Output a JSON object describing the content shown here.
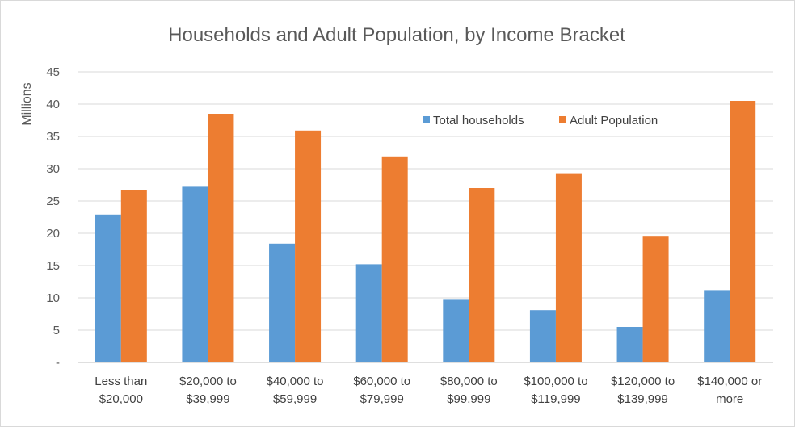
{
  "chart_data": {
    "type": "bar",
    "title": "Households and Adult Population, by Income Bracket",
    "xlabel": "",
    "ylabel": "Millions",
    "ylim": [
      0,
      45
    ],
    "yticks": [
      0,
      5,
      10,
      15,
      20,
      25,
      30,
      35,
      40,
      45
    ],
    "ytick_labels": [
      "-",
      "5",
      "10",
      "15",
      "20",
      "25",
      "30",
      "35",
      "40",
      "45"
    ],
    "grid": true,
    "legend_position": "top-right",
    "categories": [
      [
        "Less than",
        "$20,000"
      ],
      [
        "$20,000 to",
        "$39,999"
      ],
      [
        "$40,000 to",
        "$59,999"
      ],
      [
        "$60,000 to",
        "$79,999"
      ],
      [
        "$80,000 to",
        "$99,999"
      ],
      [
        "$100,000 to",
        "$119,999"
      ],
      [
        "$120,000 to",
        "$139,999"
      ],
      [
        "$140,000 or",
        "more"
      ]
    ],
    "series": [
      {
        "name": "Total households",
        "color": "#5b9bd5",
        "values": [
          22.9,
          27.2,
          18.4,
          15.2,
          9.7,
          8.1,
          5.5,
          11.2
        ]
      },
      {
        "name": "Adult Population",
        "color": "#ed7d31",
        "values": [
          26.7,
          38.5,
          35.9,
          31.9,
          27.0,
          29.3,
          19.6,
          40.5
        ]
      }
    ]
  }
}
